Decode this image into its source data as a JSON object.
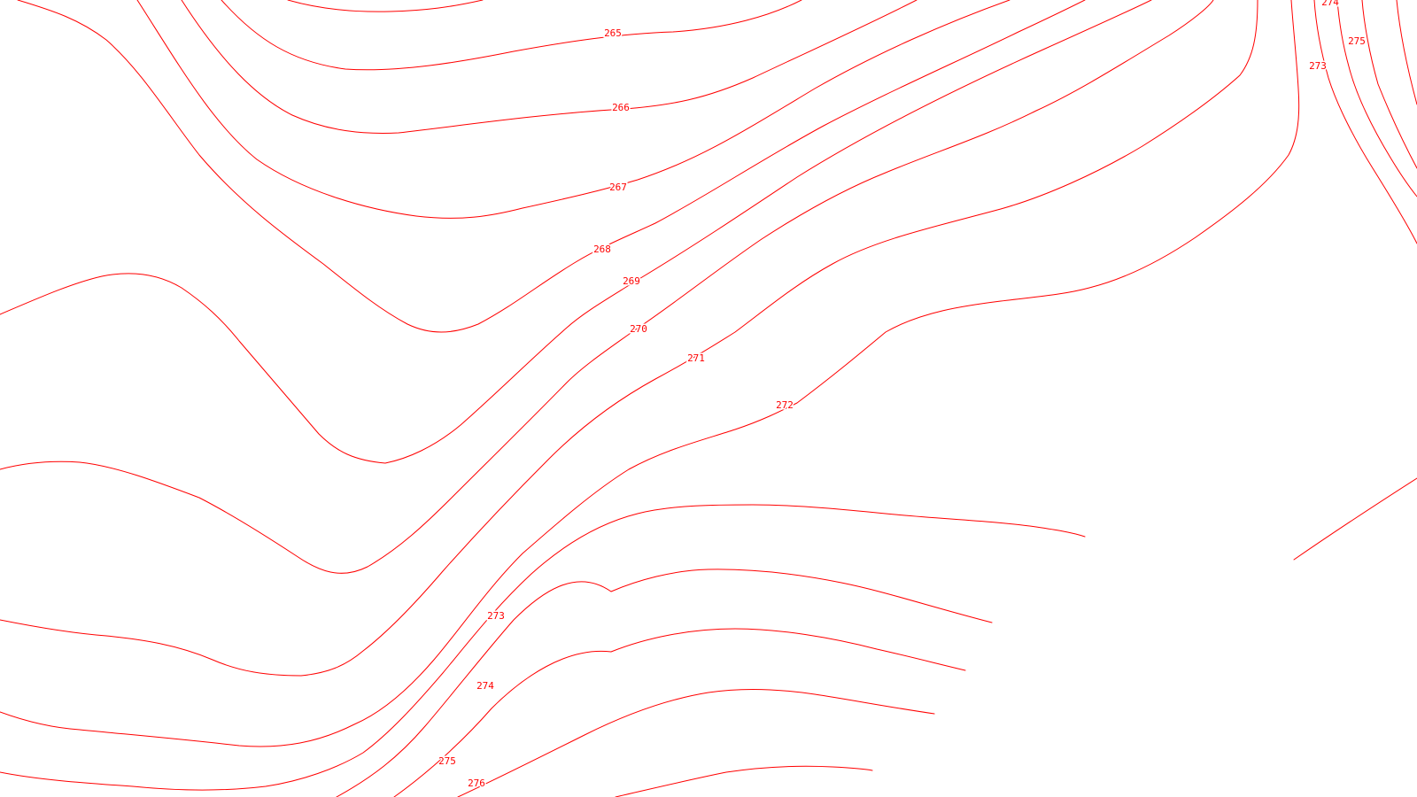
{
  "map": {
    "style": {
      "background": "#ffffff",
      "contour_color": "#ff0000"
    },
    "contour_labels": [
      {
        "id": "265",
        "text": "265"
      },
      {
        "id": "266",
        "text": "266"
      },
      {
        "id": "267",
        "text": "267"
      },
      {
        "id": "268",
        "text": "268"
      },
      {
        "id": "269",
        "text": "269"
      },
      {
        "id": "270",
        "text": "270"
      },
      {
        "id": "271",
        "text": "271"
      },
      {
        "id": "272",
        "text": "272"
      },
      {
        "id": "273-right",
        "text": "273"
      },
      {
        "id": "274-right",
        "text": "274"
      },
      {
        "id": "275-right",
        "text": "275"
      },
      {
        "id": "273-lower",
        "text": "273"
      },
      {
        "id": "274-lower",
        "text": "274"
      },
      {
        "id": "275-lower",
        "text": "275"
      },
      {
        "id": "276-lower",
        "text": "276"
      }
    ]
  }
}
